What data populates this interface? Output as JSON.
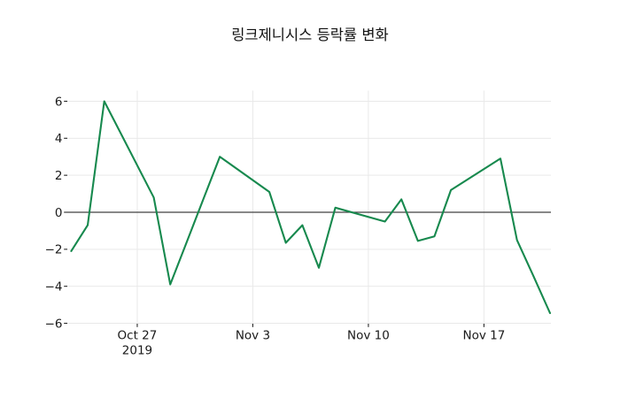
{
  "chart_data": {
    "type": "line",
    "title": "링크제니시스 등락률 변화",
    "xlabel": "",
    "ylabel": "",
    "x": [
      "2019-10-23",
      "2019-10-24",
      "2019-10-25",
      "2019-10-28",
      "2019-10-29",
      "2019-10-30",
      "2019-10-31",
      "2019-11-01",
      "2019-11-04",
      "2019-11-05",
      "2019-11-06",
      "2019-11-07",
      "2019-11-08",
      "2019-11-11",
      "2019-11-12",
      "2019-11-13",
      "2019-11-14",
      "2019-11-15",
      "2019-11-18",
      "2019-11-19",
      "2019-11-20",
      "2019-11-21"
    ],
    "values": [
      -2.1,
      -0.7,
      6.0,
      0.8,
      -3.9,
      -1.6,
      0.7,
      3.0,
      1.1,
      -1.65,
      -0.7,
      -3.0,
      0.25,
      -0.5,
      0.7,
      -1.55,
      -1.3,
      1.2,
      2.9,
      -1.5,
      -3.45,
      -5.45
    ],
    "series_name": "등락률",
    "y_ticks": [
      {
        "value": 6,
        "label": "6"
      },
      {
        "value": 4,
        "label": "4"
      },
      {
        "value": 2,
        "label": "2"
      },
      {
        "value": 0,
        "label": "0"
      },
      {
        "value": -2,
        "label": "−2"
      },
      {
        "value": -4,
        "label": "−4"
      },
      {
        "value": -6,
        "label": "−6"
      }
    ],
    "x_ticks": [
      {
        "date": "2019-10-27",
        "label": "Oct 27",
        "sublabel": "2019"
      },
      {
        "date": "2019-11-03",
        "label": "Nov 3",
        "sublabel": ""
      },
      {
        "date": "2019-11-10",
        "label": "Nov 10",
        "sublabel": ""
      },
      {
        "date": "2019-11-17",
        "label": "Nov 17",
        "sublabel": ""
      }
    ],
    "ylim": [
      -6.0,
      6.6
    ],
    "grid": true,
    "zero_line": true,
    "legend": "none",
    "colors": {
      "line": "#17894e",
      "grid": "#e9e9e9",
      "zero_line": "#414141",
      "tick": "#262626",
      "text": "#1a1a1a",
      "background": "#ffffff"
    }
  }
}
